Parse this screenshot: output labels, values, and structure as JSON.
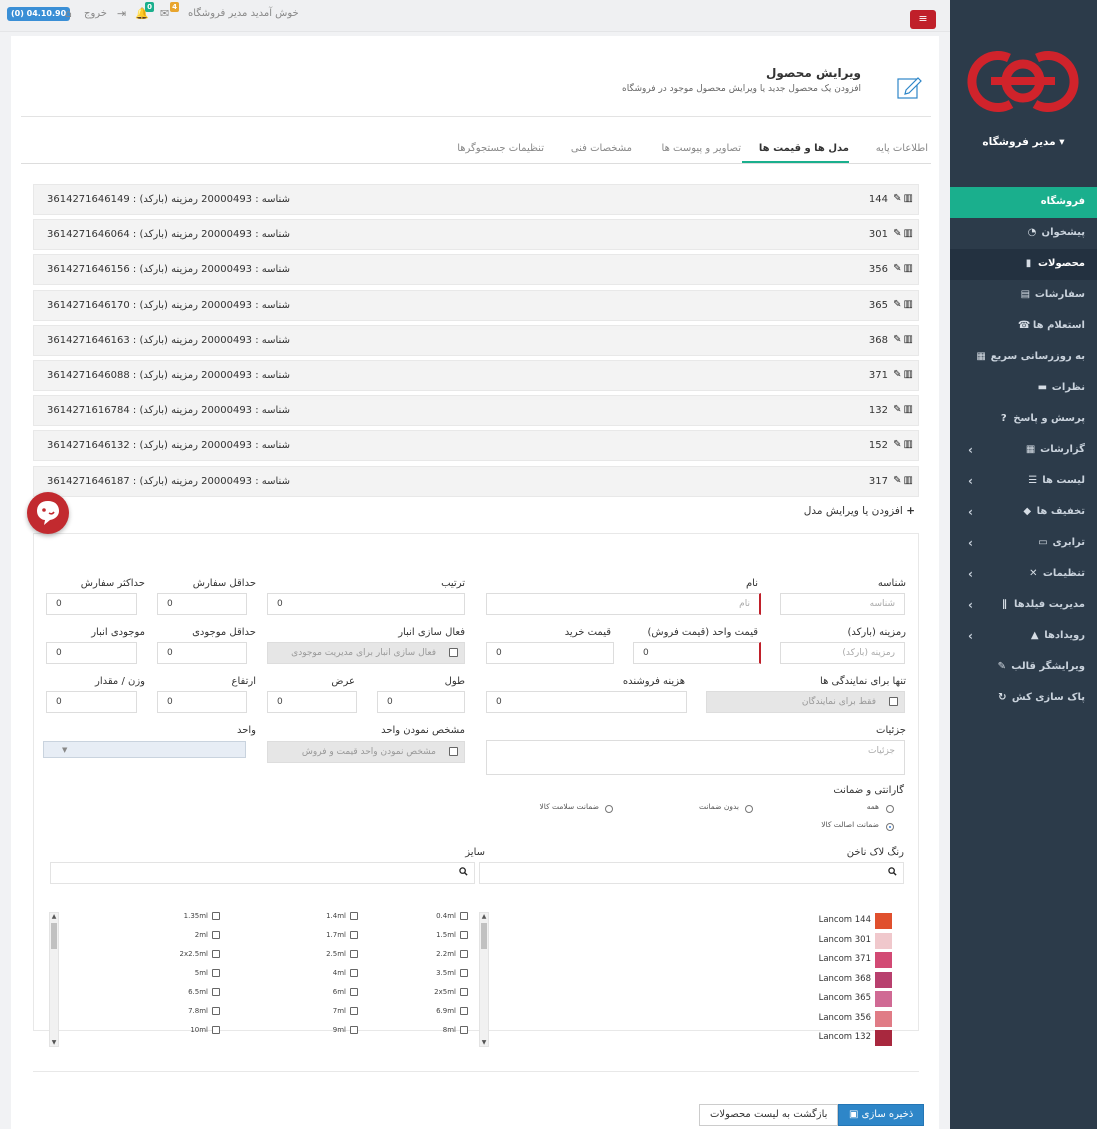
{
  "topbar": {
    "version_badge": "(0) 04.10.90",
    "exit_label": "خروج",
    "welcome": "خوش آمدید مدیر فروشگاه",
    "mail_count": "4",
    "notif_count": "0"
  },
  "sidebar": {
    "store_manager": "مدیر فروشگاه",
    "items": [
      {
        "label": "فروشگاه",
        "icon": "store-icon"
      },
      {
        "label": "پیشخوان",
        "icon": "dashboard-icon"
      },
      {
        "label": "محصولات",
        "icon": "box-icon"
      },
      {
        "label": "سفارشات",
        "icon": "file-icon"
      },
      {
        "label": "استعلام ها",
        "icon": "phone-icon"
      },
      {
        "label": "به روزرسانی سریع",
        "icon": "table-icon"
      },
      {
        "label": "نظرات",
        "icon": "comment-icon"
      },
      {
        "label": "پرسش و پاسخ",
        "icon": "question-icon"
      },
      {
        "label": "گزارشات",
        "icon": "grid-icon"
      },
      {
        "label": "لیست ها",
        "icon": "list-icon"
      },
      {
        "label": "تخفیف ها",
        "icon": "tag-icon"
      },
      {
        "label": "ترابری",
        "icon": "truck-icon"
      },
      {
        "label": "تنظیمات",
        "icon": "tools-icon"
      },
      {
        "label": "مدیریت فیلدها",
        "icon": "paperclip-icon"
      },
      {
        "label": "رویدادها",
        "icon": "warning-icon"
      },
      {
        "label": "ویرایشگر قالب",
        "icon": "brush-icon"
      },
      {
        "label": "پاک سازی کش",
        "icon": "refresh-icon"
      }
    ]
  },
  "page": {
    "title": "ویرایش محصول",
    "subtitle": "افزودن یک محصول جدید یا ویرایش محصول موجود در فروشگاه"
  },
  "tabs": [
    "اطلاعات پایه",
    "مدل ها و قیمت ها",
    "تصاویر و پیوست ها",
    "مشخصات فنی",
    "تنظیمات جستجوگرها"
  ],
  "models": [
    {
      "num": "144",
      "info": "شناسه : 20000493   رمزینه (بارکد) : 3614271646149"
    },
    {
      "num": "301",
      "info": "شناسه : 20000493   رمزینه (بارکد) : 3614271646064"
    },
    {
      "num": "356",
      "info": "شناسه : 20000493   رمزینه (بارکد) : 3614271646156"
    },
    {
      "num": "365",
      "info": "شناسه : 20000493   رمزینه (بارکد) : 3614271646170"
    },
    {
      "num": "368",
      "info": "شناسه : 20000493   رمزینه (بارکد) : 3614271646163"
    },
    {
      "num": "371",
      "info": "شناسه : 20000493   رمزینه (بارکد) : 3614271646088"
    },
    {
      "num": "132",
      "info": "شناسه : 20000493   رمزینه (بارکد) : 3614271616784"
    },
    {
      "num": "152",
      "info": "شناسه : 20000493   رمزینه (بارکد) : 3614271646132"
    },
    {
      "num": "317",
      "info": "شناسه : 20000493   رمزینه (بارکد) : 3614271646187"
    }
  ],
  "form": {
    "section_title": "افزودن یا ویرایش مدل",
    "id_label": "شناسه",
    "id_placeholder": "شناسه",
    "name_label": "نام",
    "name_placeholder": "نام",
    "order_label": "ترتیب",
    "order_value": "0",
    "min_order_label": "حداقل سفارش",
    "min_order_value": "0",
    "max_order_label": "حداکثر سفارش",
    "max_order_value": "0",
    "barcode_label": "رمزینه (بارکد)",
    "barcode_placeholder": "رمزینه (بارکد)",
    "unit_price_label": "قیمت واحد (قیمت فروش)",
    "unit_price_value": "0",
    "buy_price_label": "قیمت خرید",
    "buy_price_value": "0",
    "stock_enable_label": "فعال سازی انبار",
    "stock_enable_text": "فعال سازی انبار برای مدیریت موجودی",
    "min_stock_label": "حداقل موجودی",
    "min_stock_value": "0",
    "stock_label": "موجودی انبار",
    "stock_value": "0",
    "reseller_label": "تنها برای نمایندگی ها",
    "reseller_text": "فقط برای نمایندگان",
    "sell_cost_label": "هزینه فروشنده",
    "sell_cost_value": "0",
    "length_label": "طول",
    "length_value": "0",
    "width_label": "عرض",
    "width_value": "0",
    "height_label": "ارتفاع",
    "height_value": "0",
    "weight_label": "وزن / مقدار",
    "weight_value": "0",
    "details_label": "جزئیات",
    "details_placeholder": "جزئیات",
    "unit_define_label": "مشخص نمودن واحد",
    "unit_define_text": "مشخص نمودن واحد قیمت و فروش",
    "unit_label": "واحد",
    "warranty_label": "گارانتی و ضمانت",
    "warranty_options": [
      "همه",
      "بدون ضمانت",
      "ضمانت سلامت کالا",
      "ضمانت اصالت کالا"
    ],
    "color_label": "رنگ لاک ناخن",
    "size_label": "سایز"
  },
  "colors": [
    {
      "label": "Lancom 144",
      "color": "#e0502e"
    },
    {
      "label": "Lancom 301",
      "color": "#f0c8cc"
    },
    {
      "label": "Lancom 371",
      "color": "#d24a74"
    },
    {
      "label": "Lancom 368",
      "color": "#b8406e"
    },
    {
      "label": "Lancom 365",
      "color": "#d06a94"
    },
    {
      "label": "Lancom 356",
      "color": "#e07c86"
    },
    {
      "label": "Lancom 132",
      "color": "#a8283e"
    }
  ],
  "sizes": [
    [
      "0.4ml",
      "1.4ml",
      "1.35ml"
    ],
    [
      "1.5ml",
      "1.7ml",
      "2ml"
    ],
    [
      "2.2ml",
      "2.5ml",
      "2x2.5ml"
    ],
    [
      "3.5ml",
      "4ml",
      "5ml"
    ],
    [
      "2x5ml",
      "6ml",
      "6.5ml"
    ],
    [
      "6.9ml",
      "7ml",
      "7.8ml"
    ],
    [
      "8ml",
      "9ml",
      "10ml"
    ]
  ],
  "buttons": {
    "save": "ذخیره سازی",
    "back": "بازگشت به لیست محصولات"
  },
  "colors_ui": {
    "accent": "#1aaf8d",
    "sidebar_bg": "#2c3b4a",
    "brand_red": "#c0202a",
    "primary_blue": "#2e86c8"
  }
}
